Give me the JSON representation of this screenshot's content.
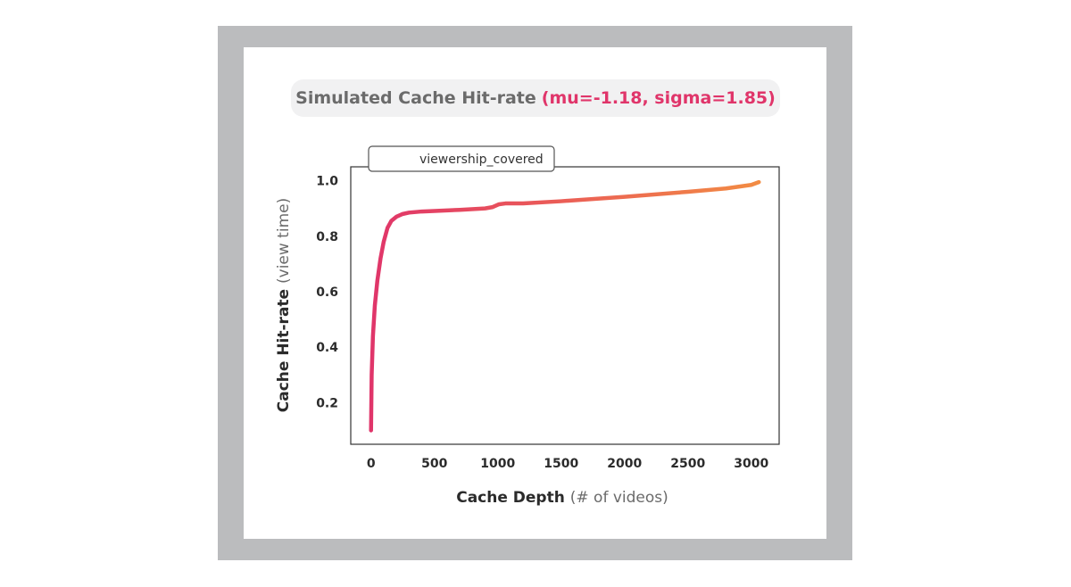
{
  "chart": {
    "title_main": "Simulated Cache Hit-rate",
    "title_params": "(mu=-1.18, sigma=1.85)",
    "xlabel_main": "Cache Depth",
    "xlabel_sub": "(# of videos)",
    "ylabel_main": "Cache Hit-rate",
    "ylabel_sub": "(view time)",
    "legend_label": "viewership_covered"
  },
  "colors": {
    "frame": "#bbbcbe",
    "line_start": "#e0356a",
    "line_end": "#f28c43",
    "title_params": "#e0356a"
  },
  "chart_data": {
    "type": "line",
    "title": "Simulated Cache Hit-rate (mu=-1.18, sigma=1.85)",
    "xlabel": "Cache Depth (# of videos)",
    "ylabel": "Cache Hit-rate (view time)",
    "xlim": [
      -160,
      3220
    ],
    "ylim": [
      0.05,
      1.05
    ],
    "xticks": [
      0,
      500,
      1000,
      1500,
      2000,
      2500,
      3000
    ],
    "yticks": [
      0.2,
      0.4,
      0.6,
      0.8,
      1.0
    ],
    "xtick_labels": [
      "0",
      "500",
      "1000",
      "1500",
      "2000",
      "2500",
      "3000"
    ],
    "ytick_labels": [
      "0.2",
      "0.4",
      "0.6",
      "0.8",
      "1.0"
    ],
    "grid": false,
    "legend_position": "top-left",
    "series": [
      {
        "name": "viewership_covered",
        "x": [
          0,
          5,
          15,
          30,
          50,
          75,
          100,
          130,
          160,
          200,
          250,
          300,
          400,
          500,
          700,
          900,
          960,
          1010,
          1060,
          1200,
          1500,
          2000,
          2500,
          2800,
          3000,
          3060
        ],
        "y": [
          0.1,
          0.3,
          0.44,
          0.55,
          0.64,
          0.72,
          0.78,
          0.83,
          0.855,
          0.87,
          0.88,
          0.885,
          0.889,
          0.891,
          0.895,
          0.9,
          0.905,
          0.915,
          0.918,
          0.918,
          0.926,
          0.942,
          0.96,
          0.972,
          0.985,
          0.995
        ]
      }
    ]
  }
}
